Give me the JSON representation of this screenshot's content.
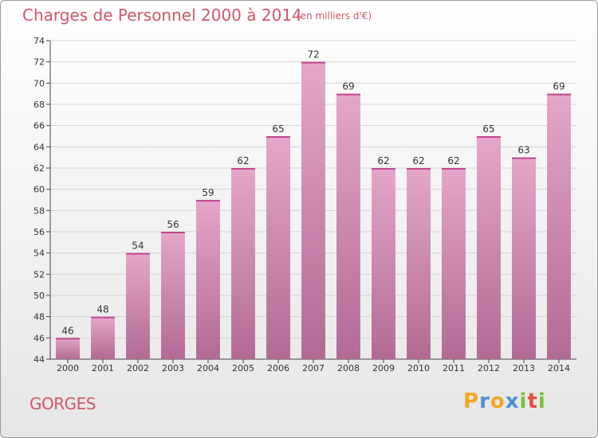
{
  "title": "Charges de Personnel 2000 à 2014",
  "subtitle": "(en milliers d'€)",
  "commune": "GORGES",
  "logo": {
    "text": "Proxiti",
    "letters": [
      "P",
      "r",
      "o",
      "x",
      "i",
      "t",
      "i"
    ],
    "colors": [
      "#f5a623",
      "#4a90d9",
      "#f5a623",
      "#4a90d9",
      "#7cbf3c",
      "#e94e3c",
      "#7cbf3c"
    ]
  },
  "colors": {
    "accent": "#d0566b",
    "bar_top": "#e4a6c9",
    "bar_bottom": "#b26a94"
  },
  "chart_data": {
    "type": "bar",
    "categories": [
      "2000",
      "2001",
      "2002",
      "2003",
      "2004",
      "2005",
      "2006",
      "2007",
      "2008",
      "2009",
      "2010",
      "2011",
      "2012",
      "2013",
      "2014"
    ],
    "values": [
      46,
      48,
      54,
      56,
      59,
      62,
      65,
      72,
      69,
      62,
      62,
      62,
      65,
      63,
      69
    ],
    "ylim": [
      44,
      74
    ],
    "yticks": [
      44,
      46,
      48,
      50,
      52,
      54,
      56,
      58,
      60,
      62,
      64,
      66,
      68,
      70,
      72,
      74
    ],
    "grid": true,
    "xlabel": "",
    "ylabel": ""
  }
}
